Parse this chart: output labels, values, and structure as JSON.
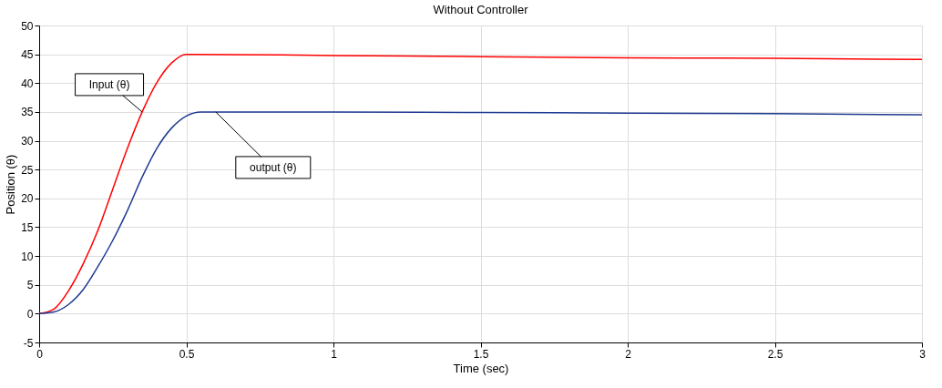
{
  "chart_data": {
    "type": "line",
    "title": "Without Controller",
    "xlabel": "Time (sec)",
    "ylabel": "Position (θ)",
    "xlim": [
      0,
      3
    ],
    "ylim": [
      -5,
      50
    ],
    "xticks": [
      0,
      0.5,
      1,
      1.5,
      2,
      2.5,
      3
    ],
    "yticks": [
      -5,
      0,
      5,
      10,
      15,
      20,
      25,
      30,
      35,
      40,
      45,
      50
    ],
    "grid": true,
    "marker": "none",
    "line_style": "solid",
    "series": [
      {
        "color": "#ff0000",
        "x": [
          0,
          0.05,
          0.1,
          0.15,
          0.2,
          0.25,
          0.3,
          0.35,
          0.4,
          0.45,
          0.5,
          1,
          1.5,
          2,
          2.5,
          3
        ],
        "values": [
          0,
          0.8,
          4.0,
          8.7,
          14.5,
          21.6,
          28.7,
          35.0,
          40.1,
          43.5,
          45.0,
          44.8,
          44.6,
          44.4,
          44.3,
          44.1
        ]
      },
      {
        "color": "#1f3a93",
        "x": [
          0,
          0.05,
          0.1,
          0.15,
          0.2,
          0.25,
          0.3,
          0.35,
          0.4,
          0.45,
          0.5,
          0.55,
          0.6,
          1,
          1.5,
          2,
          2.5,
          3
        ],
        "values": [
          0,
          0.3,
          1.6,
          4.2,
          8.2,
          12.7,
          17.9,
          23.7,
          28.7,
          32.2,
          34.3,
          35.0,
          35.0,
          35.0,
          34.9,
          34.8,
          34.7,
          34.5
        ]
      }
    ],
    "annotations": [
      {
        "text": "Input (θ)",
        "x": 0.35,
        "y": 35.0
      },
      {
        "text": "output (θ)",
        "x": 0.6,
        "y": 35.0
      }
    ]
  }
}
